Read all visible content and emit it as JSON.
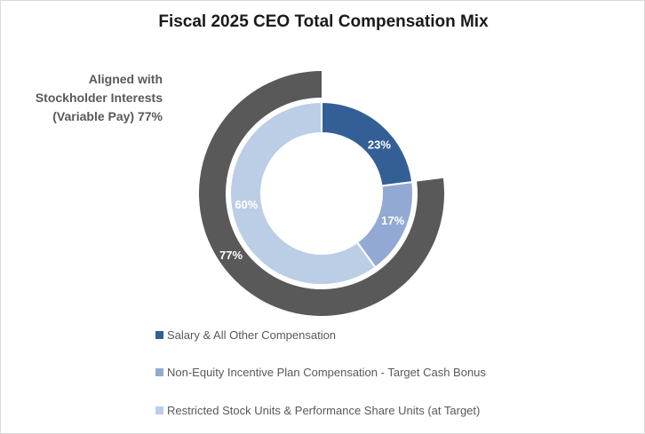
{
  "chart_data": {
    "type": "donut",
    "title": "Fiscal 2025 CEO Total Compensation Mix",
    "annotation": "Aligned with Stockholder Interests (Variable Pay) 77%",
    "inner_ring": {
      "slices": [
        {
          "name": "Salary & All Other Compensation",
          "value": 23,
          "label": "23%",
          "color": "#335f96"
        },
        {
          "name": "Non-Equity Incentive Plan Compensation - Target Cash Bonus",
          "value": 17,
          "label": "17%",
          "color": "#92aad3"
        },
        {
          "name": "Restricted Stock Units & Performance Share Units (at Target)",
          "value": 60,
          "label": "60%",
          "color": "#bccde6"
        }
      ]
    },
    "outer_ring": {
      "value": 77,
      "label": "77%",
      "color": "#595959"
    },
    "legend_placement": "bottom"
  }
}
